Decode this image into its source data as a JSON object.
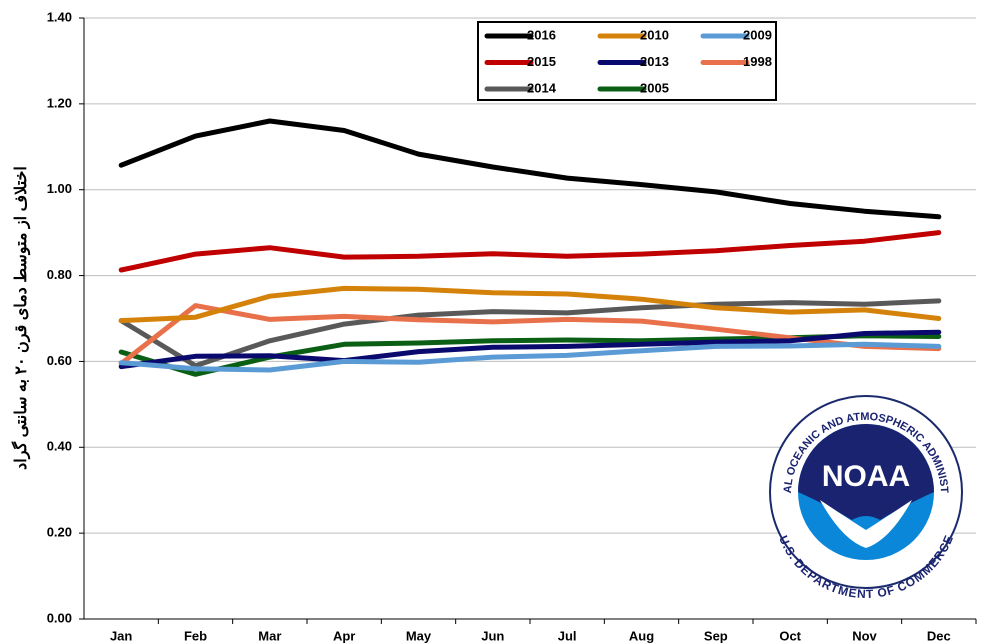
{
  "chart_data": {
    "type": "line",
    "y_label": "اختلاف از متوسط دمای قرن ۲۰ به سانتی گراد",
    "categories": [
      "Jan",
      "Feb",
      "Mar",
      "Apr",
      "May",
      "Jun",
      "Jul",
      "Aug",
      "Sep",
      "Oct",
      "Nov",
      "Dec"
    ],
    "series": [
      {
        "name": "2016",
        "color": "#000000",
        "values": [
          1.057,
          1.125,
          1.16,
          1.138,
          1.083,
          1.053,
          1.027,
          1.012,
          0.995,
          0.968,
          0.95,
          0.937
        ]
      },
      {
        "name": "2010",
        "color": "#d4820a",
        "values": [
          0.695,
          0.703,
          0.752,
          0.77,
          0.768,
          0.76,
          0.757,
          0.745,
          0.725,
          0.715,
          0.72,
          0.7
        ]
      },
      {
        "name": "2009",
        "color": "#5b9bd5",
        "values": [
          0.597,
          0.583,
          0.58,
          0.6,
          0.598,
          0.61,
          0.614,
          0.625,
          0.635,
          0.636,
          0.64,
          0.635
        ]
      },
      {
        "name": "2015",
        "color": "#c00000",
        "values": [
          0.813,
          0.85,
          0.865,
          0.843,
          0.845,
          0.851,
          0.845,
          0.85,
          0.858,
          0.87,
          0.88,
          0.9
        ]
      },
      {
        "name": "2013",
        "color": "#0a0a6e",
        "values": [
          0.588,
          0.612,
          0.613,
          0.602,
          0.623,
          0.633,
          0.635,
          0.64,
          0.645,
          0.648,
          0.665,
          0.668
        ]
      },
      {
        "name": "1998",
        "color": "#e8704a",
        "values": [
          0.595,
          0.73,
          0.698,
          0.705,
          0.697,
          0.692,
          0.698,
          0.694,
          0.675,
          0.655,
          0.635,
          0.63
        ]
      },
      {
        "name": "2014",
        "color": "#595959",
        "values": [
          0.695,
          0.59,
          0.648,
          0.687,
          0.708,
          0.716,
          0.713,
          0.725,
          0.733,
          0.737,
          0.733,
          0.741
        ]
      },
      {
        "name": "2005",
        "color": "#0a5f14",
        "values": [
          0.622,
          0.57,
          0.61,
          0.64,
          0.643,
          0.648,
          0.65,
          0.648,
          0.652,
          0.655,
          0.66,
          0.658
        ]
      }
    ],
    "ylim": [
      0,
      1.4
    ],
    "yticks": [
      {
        "value": 0,
        "label": "0.00"
      },
      {
        "value": 0.2,
        "label": "0.20"
      },
      {
        "value": 0.4,
        "label": "0.40"
      },
      {
        "value": 0.6,
        "label": "0.60"
      },
      {
        "value": 0.8,
        "label": "0.80"
      },
      {
        "value": 1.0,
        "label": "1.00"
      },
      {
        "value": 1.2,
        "label": "1.20"
      },
      {
        "value": 1.4,
        "label": "1.40"
      }
    ],
    "grid": true,
    "legend": "top",
    "logo": {
      "name": "NOAA",
      "top_text": "NATIONAL OCEANIC AND ATMOSPHERIC ADMINISTRATION",
      "bottom_text": "U.S. DEPARTMENT OF COMMERCE"
    }
  }
}
